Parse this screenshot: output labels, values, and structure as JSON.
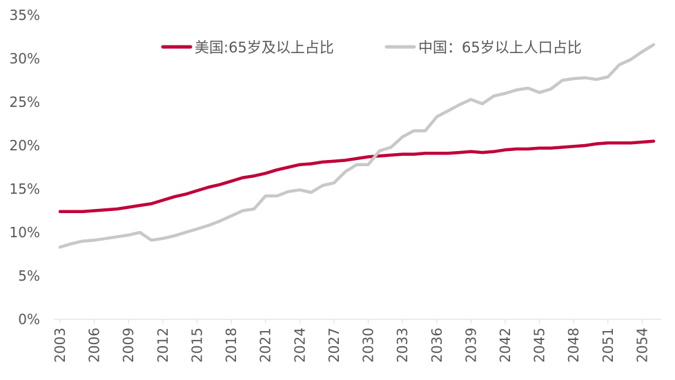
{
  "chart_data": {
    "type": "line",
    "title": "",
    "xlabel": "",
    "ylabel": "",
    "ylim": [
      0,
      35
    ],
    "y_ticks": [
      "0%",
      "5%",
      "10%",
      "15%",
      "20%",
      "25%",
      "30%",
      "35%"
    ],
    "x_tick_labels": [
      "2003",
      "2006",
      "2009",
      "2012",
      "2015",
      "2018",
      "2021",
      "2024",
      "2027",
      "2030",
      "2033",
      "2036",
      "2039",
      "2042",
      "2045",
      "2048",
      "2051",
      "2054"
    ],
    "grid": false,
    "legend_position": "top",
    "x": [
      2003,
      2004,
      2005,
      2006,
      2007,
      2008,
      2009,
      2010,
      2011,
      2012,
      2013,
      2014,
      2015,
      2016,
      2017,
      2018,
      2019,
      2020,
      2021,
      2022,
      2023,
      2024,
      2025,
      2026,
      2027,
      2028,
      2029,
      2030,
      2031,
      2032,
      2033,
      2034,
      2035,
      2036,
      2037,
      2038,
      2039,
      2040,
      2041,
      2042,
      2043,
      2044,
      2045,
      2046,
      2047,
      2048,
      2049,
      2050,
      2051,
      2052,
      2053,
      2054,
      2055
    ],
    "series": [
      {
        "name": "美国:65岁及以上占比",
        "color": "#C00039",
        "values": [
          12.4,
          12.4,
          12.4,
          12.5,
          12.6,
          12.7,
          12.9,
          13.1,
          13.3,
          13.7,
          14.1,
          14.4,
          14.8,
          15.2,
          15.5,
          15.9,
          16.3,
          16.5,
          16.8,
          17.2,
          17.5,
          17.8,
          17.9,
          18.1,
          18.2,
          18.3,
          18.5,
          18.7,
          18.8,
          18.9,
          19.0,
          19.0,
          19.1,
          19.1,
          19.1,
          19.2,
          19.3,
          19.2,
          19.3,
          19.5,
          19.6,
          19.6,
          19.7,
          19.7,
          19.8,
          19.9,
          20.0,
          20.2,
          20.3,
          20.3,
          20.3,
          20.4,
          20.5
        ]
      },
      {
        "name": "中国：65岁以上人口占比",
        "color": "#C8C8C8",
        "values": [
          8.3,
          8.7,
          9.0,
          9.1,
          9.3,
          9.5,
          9.7,
          10.0,
          9.1,
          9.3,
          9.6,
          10.0,
          10.4,
          10.8,
          11.3,
          11.9,
          12.5,
          12.7,
          14.2,
          14.2,
          14.7,
          14.9,
          14.6,
          15.4,
          15.7,
          17.0,
          17.8,
          17.8,
          19.4,
          19.8,
          21.0,
          21.7,
          21.7,
          23.3,
          24.0,
          24.7,
          25.3,
          24.8,
          25.7,
          26.0,
          26.4,
          26.6,
          26.1,
          26.5,
          27.5,
          27.7,
          27.8,
          27.6,
          27.9,
          29.3,
          29.9,
          30.8,
          31.6
        ]
      }
    ]
  }
}
